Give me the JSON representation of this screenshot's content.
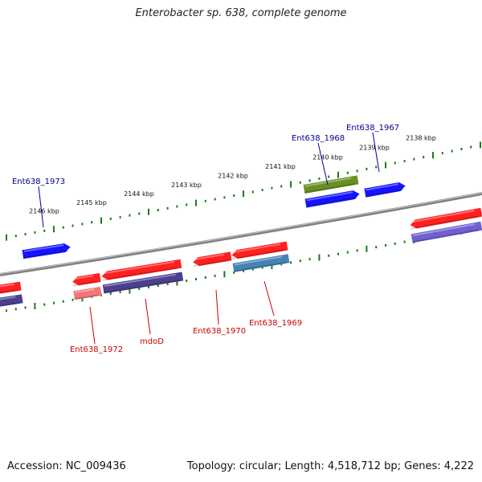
{
  "title": "Enterobacter sp. 638, complete genome",
  "footer": {
    "accession": "Accession: NC_009436",
    "topology": "Topology: circular; Length: 4,518,712 bp; Genes: 4,222"
  },
  "colors": {
    "backbone": "#808080",
    "tick": "#1a7a1a",
    "red_gene": "#ff2020",
    "blue_gene": "#1414ff",
    "olive_gene": "#6b8e23",
    "navy_gene": "#4b3f8f",
    "steel_gene": "#4682b4",
    "pink_gene": "#f07878",
    "violet_gene": "#7060d0",
    "label_red": "#cc0000",
    "label_blue": "#00008b"
  },
  "ticks": [
    {
      "label": "2146 kbp"
    },
    {
      "label": "2145 kbp"
    },
    {
      "label": "2144 kbp"
    },
    {
      "label": "2143 kbp"
    },
    {
      "label": "2142 kbp"
    },
    {
      "label": "2141 kbp"
    },
    {
      "label": "2140 kbp"
    },
    {
      "label": "2139 kbp"
    },
    {
      "label": "2138 kbp"
    }
  ],
  "gene_labels": [
    {
      "name": "Ent638_1973",
      "color": "label_blue"
    },
    {
      "name": "Ent638_1968",
      "color": "label_blue"
    },
    {
      "name": "Ent638_1967",
      "color": "label_blue"
    },
    {
      "name": "Ent638_1972",
      "color": "label_red"
    },
    {
      "name": "mdoD",
      "color": "label_red"
    },
    {
      "name": "Ent638_1970",
      "color": "label_red"
    },
    {
      "name": "Ent638_1969",
      "color": "label_red"
    }
  ]
}
